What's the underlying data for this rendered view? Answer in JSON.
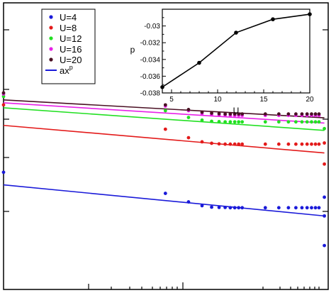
{
  "chart_data": [
    {
      "type": "scatter",
      "title": "",
      "xlabel": "",
      "ylabel": "",
      "xscale": "log",
      "grid": false,
      "legend": "top-left",
      "note": "main panel is cropped; axis tick labels are not visible, values are in relative plot units (x: log10 decade index 0-3, y: 0 bottom - 1 top)",
      "series": [
        {
          "name": "U=4",
          "color": "#1a1ad9",
          "points": [
            [
              0,
              0.412
            ],
            [
              1,
              0.34
            ],
            [
              1.301,
              0.311
            ],
            [
              1.477,
              0.298
            ],
            [
              1.602,
              0.293
            ],
            [
              1.699,
              0.292
            ],
            [
              1.778,
              0.292
            ],
            [
              1.845,
              0.291
            ],
            [
              1.903,
              0.291
            ],
            [
              1.954,
              0.291
            ],
            [
              2.0,
              0.291
            ],
            [
              2.301,
              0.291
            ],
            [
              2.477,
              0.291
            ],
            [
              2.602,
              0.291
            ],
            [
              2.699,
              0.291
            ],
            [
              2.778,
              0.291
            ],
            [
              2.845,
              0.291
            ],
            [
              2.903,
              0.291
            ],
            [
              2.954,
              0.291
            ],
            [
              3.0,
              0.291
            ]
          ],
          "outliers": [
            [
              3.07,
              0.327
            ],
            [
              3.07,
              0.263
            ],
            [
              3.07,
              0.162
            ]
          ]
        },
        {
          "name": "U=8",
          "color": "#e31a1a",
          "points": [
            [
              0,
              0.642
            ],
            [
              1,
              0.559
            ],
            [
              1.301,
              0.53
            ],
            [
              1.477,
              0.516
            ],
            [
              1.602,
              0.511
            ],
            [
              1.699,
              0.509
            ],
            [
              1.778,
              0.508
            ],
            [
              1.845,
              0.508
            ],
            [
              1.903,
              0.508
            ],
            [
              1.954,
              0.508
            ],
            [
              2.0,
              0.508
            ],
            [
              2.301,
              0.508
            ],
            [
              2.477,
              0.508
            ],
            [
              2.602,
              0.508
            ],
            [
              2.699,
              0.508
            ],
            [
              2.778,
              0.508
            ],
            [
              2.845,
              0.508
            ],
            [
              2.903,
              0.508
            ],
            [
              2.954,
              0.508
            ],
            [
              3.0,
              0.508
            ]
          ],
          "outliers": [
            [
              3.07,
              0.512
            ],
            [
              3.07,
              0.44
            ]
          ]
        },
        {
          "name": "U=12",
          "color": "#22e022",
          "points": [
            [
              0,
              0.671
            ],
            [
              1,
              0.622
            ],
            [
              1.301,
              0.599
            ],
            [
              1.477,
              0.59
            ],
            [
              1.602,
              0.586
            ],
            [
              1.699,
              0.585
            ],
            [
              1.778,
              0.584
            ],
            [
              1.845,
              0.584
            ],
            [
              1.903,
              0.584
            ],
            [
              1.954,
              0.584
            ],
            [
              2.0,
              0.584
            ],
            [
              2.301,
              0.584
            ],
            [
              2.477,
              0.584
            ],
            [
              2.602,
              0.584
            ],
            [
              2.699,
              0.584
            ],
            [
              2.778,
              0.584
            ],
            [
              2.845,
              0.584
            ],
            [
              2.903,
              0.584
            ],
            [
              2.954,
              0.584
            ],
            [
              3.0,
              0.584
            ]
          ],
          "outliers": [
            [
              3.07,
              0.561
            ]
          ]
        },
        {
          "name": "U=16",
          "color": "#e820e8",
          "points": [
            [
              0,
              0.679
            ],
            [
              1,
              0.638
            ],
            [
              1.301,
              0.622
            ],
            [
              1.477,
              0.612
            ],
            [
              1.602,
              0.609
            ],
            [
              1.699,
              0.607
            ],
            [
              1.778,
              0.607
            ],
            [
              1.845,
              0.606
            ],
            [
              1.903,
              0.606
            ],
            [
              1.954,
              0.606
            ],
            [
              2.0,
              0.606
            ],
            [
              2.301,
              0.606
            ],
            [
              2.477,
              0.606
            ],
            [
              2.602,
              0.606
            ],
            [
              2.699,
              0.606
            ],
            [
              2.778,
              0.606
            ],
            [
              2.845,
              0.606
            ],
            [
              2.903,
              0.606
            ],
            [
              2.954,
              0.606
            ],
            [
              3.0,
              0.606
            ]
          ],
          "outliers": []
        },
        {
          "name": "U=20",
          "color": "#4a1024",
          "points": [
            [
              0,
              0.683
            ],
            [
              1,
              0.642
            ],
            [
              1.301,
              0.626
            ],
            [
              1.477,
              0.617
            ],
            [
              1.602,
              0.614
            ],
            [
              1.699,
              0.612
            ],
            [
              1.778,
              0.611
            ],
            [
              1.845,
              0.611
            ],
            [
              1.903,
              0.611
            ],
            [
              1.954,
              0.611
            ],
            [
              2.0,
              0.611
            ],
            [
              2.301,
              0.611
            ],
            [
              2.477,
              0.611
            ],
            [
              2.602,
              0.611
            ],
            [
              2.699,
              0.611
            ],
            [
              2.778,
              0.611
            ],
            [
              2.845,
              0.611
            ],
            [
              2.903,
              0.611
            ],
            [
              2.954,
              0.611
            ],
            [
              3.0,
              0.611
            ]
          ],
          "outliers": []
        }
      ],
      "fits": [
        {
          "name": "ax^p",
          "for": "U=4",
          "color": "#1a1ad9",
          "y_at": [
            [
              0.0,
              0.369
            ],
            [
              3.07,
              0.263
            ]
          ]
        },
        {
          "name": "ax^p",
          "for": "U=8",
          "color": "#e31a1a",
          "y_at": [
            [
              0.0,
              0.572
            ],
            [
              3.07,
              0.478
            ]
          ]
        },
        {
          "name": "ax^p",
          "for": "U=12",
          "color": "#22e022",
          "y_at": [
            [
              0.0,
              0.632
            ],
            [
              3.07,
              0.555
            ]
          ]
        },
        {
          "name": "ax^p",
          "for": "U=16",
          "color": "#e820e8",
          "y_at": [
            [
              0.0,
              0.649
            ],
            [
              3.07,
              0.58
            ]
          ]
        },
        {
          "name": "ax^p",
          "for": "U=20",
          "color": "#4a1024",
          "y_at": [
            [
              0.0,
              0.659
            ],
            [
              3.07,
              0.598
            ]
          ]
        }
      ]
    },
    {
      "type": "line",
      "title": "",
      "xlabel": "U",
      "ylabel": "p",
      "xlim": [
        4,
        20
      ],
      "ylim": [
        -0.038,
        -0.028
      ],
      "x_ticks": [
        "5",
        "10",
        "15",
        "20"
      ],
      "x_tick_values": [
        5,
        10,
        15,
        20
      ],
      "y_ticks": [
        "-0.03",
        "-0.032",
        "-0.034",
        "-0.036",
        "-0.038"
      ],
      "y_tick_values": [
        -0.03,
        -0.032,
        -0.034,
        -0.036,
        -0.038
      ],
      "series": [
        {
          "name": "",
          "color": "#000000",
          "x": [
            4,
            8,
            12,
            16,
            20
          ],
          "y": [
            -0.0373,
            -0.0344,
            -0.0308,
            -0.0292,
            -0.0286
          ]
        }
      ]
    }
  ],
  "legend": {
    "items": [
      {
        "label": "U=4",
        "color": "#1a1ad9",
        "kind": "dot"
      },
      {
        "label": "U=8",
        "color": "#e31a1a",
        "kind": "dot"
      },
      {
        "label": "U=12",
        "color": "#22e022",
        "kind": "dot"
      },
      {
        "label": "U=16",
        "color": "#e820e8",
        "kind": "dot"
      },
      {
        "label": "U=20",
        "color": "#4a1024",
        "kind": "dot"
      },
      {
        "label": "ax",
        "superscript": "p",
        "color": "#1a1ad9",
        "kind": "line"
      }
    ]
  }
}
